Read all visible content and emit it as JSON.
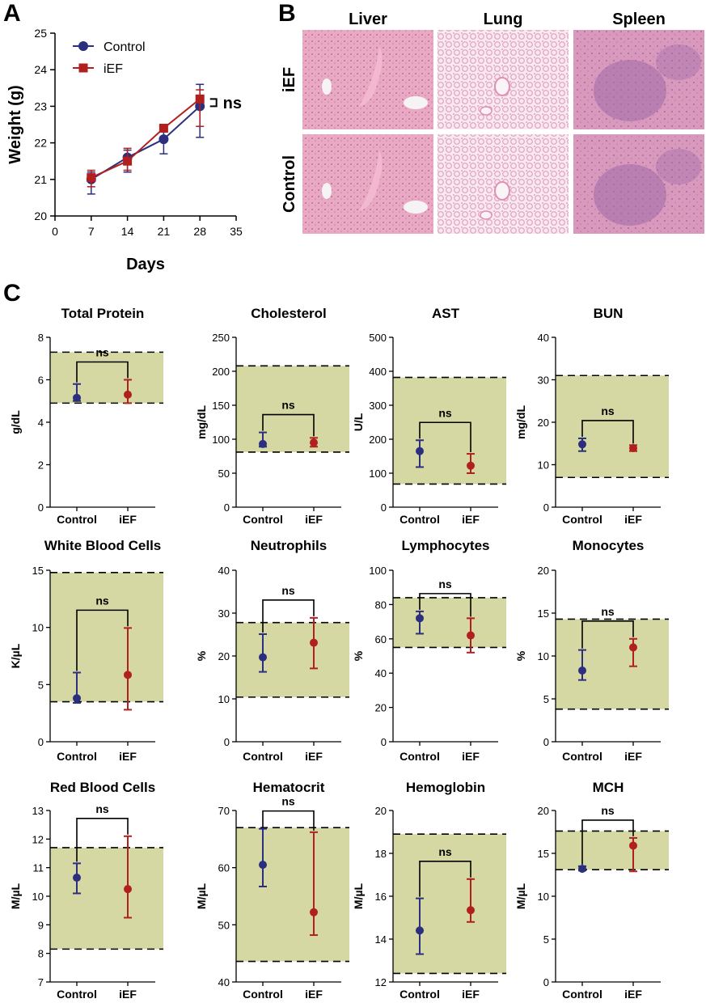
{
  "panel_labels": {
    "a": "A",
    "b": "B",
    "c": "C"
  },
  "colors": {
    "control": "#2b2f7e",
    "ief": "#b1201e",
    "range_fill": "#d6d8a3"
  },
  "histology": {
    "columns": [
      "Liver",
      "Lung",
      "Spleen"
    ],
    "rows": [
      "iEF",
      "Control"
    ]
  },
  "chart_data": [
    {
      "id": "weight",
      "type": "line",
      "title": "",
      "xlabel": "Days",
      "ylabel": "Weight (g)",
      "xlim": [
        0,
        35
      ],
      "ylim": [
        20,
        25
      ],
      "x_ticks": [
        "0",
        "7",
        "14",
        "21",
        "28",
        "35"
      ],
      "y_ticks": [
        "20",
        "21",
        "22",
        "23",
        "24",
        "25"
      ],
      "x": [
        7,
        14,
        21,
        28
      ],
      "legend": "top-left",
      "annotation": "ns",
      "series": [
        {
          "name": "Control",
          "marker": "circle",
          "values": [
            21.0,
            21.6,
            22.1,
            23.0
          ],
          "err_low": [
            20.6,
            21.2,
            21.7,
            22.15
          ],
          "err_high": [
            21.2,
            21.8,
            22.35,
            23.6
          ]
        },
        {
          "name": "iEF",
          "marker": "square",
          "values": [
            21.05,
            21.5,
            22.4,
            23.2
          ],
          "err_low": [
            20.8,
            21.25,
            22.3,
            22.45
          ],
          "err_high": [
            21.25,
            21.85,
            22.45,
            23.45
          ]
        }
      ]
    },
    {
      "id": "tp",
      "type": "scatter",
      "title": "Total Protein",
      "ylabel": "g/dL",
      "ylim": [
        0,
        8
      ],
      "y_ticks": [
        "0",
        "2",
        "4",
        "6",
        "8"
      ],
      "categories": [
        "Control",
        "iEF"
      ],
      "values": [
        5.15,
        5.3
      ],
      "err_low": [
        5.0,
        4.9
      ],
      "err_high": [
        5.8,
        6.0
      ],
      "range": [
        4.9,
        7.3
      ],
      "annotation": "ns"
    },
    {
      "id": "chol",
      "type": "scatter",
      "title": "Cholesterol",
      "ylabel": "mg/dL",
      "ylim": [
        0,
        250
      ],
      "y_ticks": [
        "0",
        "50",
        "100",
        "150",
        "200",
        "250"
      ],
      "categories": [
        "Control",
        "iEF"
      ],
      "values": [
        93,
        95
      ],
      "err_low": [
        89,
        89
      ],
      "err_high": [
        110,
        102
      ],
      "range": [
        81,
        208
      ],
      "annotation": "ns"
    },
    {
      "id": "ast",
      "type": "scatter",
      "title": "AST",
      "ylabel": "U/L",
      "ylim": [
        0,
        500
      ],
      "y_ticks": [
        "0",
        "100",
        "200",
        "300",
        "400",
        "500"
      ],
      "categories": [
        "Control",
        "iEF"
      ],
      "values": [
        165,
        122
      ],
      "err_low": [
        118,
        100
      ],
      "err_high": [
        197,
        157
      ],
      "range": [
        68,
        382
      ],
      "annotation": "ns"
    },
    {
      "id": "bun",
      "type": "scatter",
      "title": "BUN",
      "ylabel": "mg/dL",
      "ylim": [
        0,
        40
      ],
      "y_ticks": [
        "0",
        "10",
        "20",
        "30",
        "40"
      ],
      "categories": [
        "Control",
        "iEF"
      ],
      "values": [
        14.8,
        13.9
      ],
      "err_low": [
        13.2,
        13.2
      ],
      "err_high": [
        16.2,
        14.6
      ],
      "range": [
        7,
        31
      ],
      "annotation": "ns"
    },
    {
      "id": "wbc",
      "type": "scatter",
      "title": "White Blood Cells",
      "ylabel": "K/µL",
      "ylim": [
        0,
        15
      ],
      "y_ticks": [
        "0",
        "5",
        "10",
        "15"
      ],
      "categories": [
        "Control",
        "iEF"
      ],
      "values": [
        3.8,
        5.85
      ],
      "err_low": [
        3.4,
        2.8
      ],
      "err_high": [
        6.05,
        9.95
      ],
      "range": [
        3.5,
        14.8
      ],
      "annotation": "ns"
    },
    {
      "id": "neut",
      "type": "scatter",
      "title": "Neutrophils",
      "ylabel": "%",
      "ylim": [
        0,
        40
      ],
      "y_ticks": [
        "0",
        "10",
        "20",
        "30",
        "40"
      ],
      "categories": [
        "Control",
        "iEF"
      ],
      "values": [
        19.7,
        23.1
      ],
      "err_low": [
        16.3,
        17.1
      ],
      "err_high": [
        25.1,
        28.9
      ],
      "range": [
        10.4,
        27.8
      ],
      "annotation": "ns"
    },
    {
      "id": "lymph",
      "type": "scatter",
      "title": "Lymphocytes",
      "ylabel": "%",
      "ylim": [
        0,
        100
      ],
      "y_ticks": [
        "0",
        "20",
        "40",
        "60",
        "80",
        "100"
      ],
      "categories": [
        "Control",
        "iEF"
      ],
      "values": [
        72,
        62
      ],
      "err_low": [
        63,
        52
      ],
      "err_high": [
        76,
        72
      ],
      "range": [
        55,
        84
      ],
      "annotation": "ns"
    },
    {
      "id": "mono",
      "type": "scatter",
      "title": "Monocytes",
      "ylabel": "%",
      "ylim": [
        0,
        20
      ],
      "y_ticks": [
        "0",
        "5",
        "10",
        "15",
        "20"
      ],
      "categories": [
        "Control",
        "iEF"
      ],
      "values": [
        8.3,
        11.0
      ],
      "err_low": [
        7.2,
        8.8
      ],
      "err_high": [
        10.7,
        12.0
      ],
      "range": [
        3.8,
        14.3
      ],
      "annotation": "ns"
    },
    {
      "id": "rbc",
      "type": "scatter",
      "title": "Red Blood Cells",
      "ylabel": "M/µL",
      "ylim": [
        7,
        13
      ],
      "y_ticks": [
        "7",
        "8",
        "9",
        "10",
        "11",
        "12",
        "13"
      ],
      "categories": [
        "Control",
        "iEF"
      ],
      "values": [
        10.65,
        10.25
      ],
      "err_low": [
        10.1,
        9.25
      ],
      "err_high": [
        11.15,
        12.1
      ],
      "range": [
        8.15,
        11.7
      ],
      "annotation": "ns"
    },
    {
      "id": "hct",
      "type": "scatter",
      "title": "Hematocrit",
      "ylabel": "M/µL",
      "ylim": [
        40,
        70
      ],
      "y_ticks": [
        "40",
        "50",
        "60",
        "70"
      ],
      "categories": [
        "Control",
        "iEF"
      ],
      "values": [
        60.5,
        52.2
      ],
      "err_low": [
        56.7,
        48.2
      ],
      "err_high": [
        66.8,
        66.2
      ],
      "range": [
        43.6,
        67.0
      ],
      "annotation": "ns"
    },
    {
      "id": "hgb",
      "type": "scatter",
      "title": "Hemoglobin",
      "ylabel": "M/µL",
      "ylim": [
        12,
        20
      ],
      "y_ticks": [
        "12",
        "14",
        "16",
        "18",
        "20"
      ],
      "categories": [
        "Control",
        "iEF"
      ],
      "values": [
        14.4,
        15.35
      ],
      "err_low": [
        13.3,
        14.8
      ],
      "err_high": [
        15.9,
        16.8
      ],
      "range": [
        12.4,
        18.9
      ],
      "annotation": "ns"
    },
    {
      "id": "mch",
      "type": "scatter",
      "title": "MCH",
      "ylabel": "M/µL",
      "ylim": [
        0,
        20
      ],
      "y_ticks": [
        "0",
        "5",
        "10",
        "15",
        "20"
      ],
      "categories": [
        "Control",
        "iEF"
      ],
      "values": [
        13.2,
        15.9
      ],
      "err_low": [
        13.0,
        12.9
      ],
      "err_high": [
        13.5,
        16.8
      ],
      "range": [
        13.1,
        17.6
      ],
      "annotation": "ns"
    }
  ]
}
